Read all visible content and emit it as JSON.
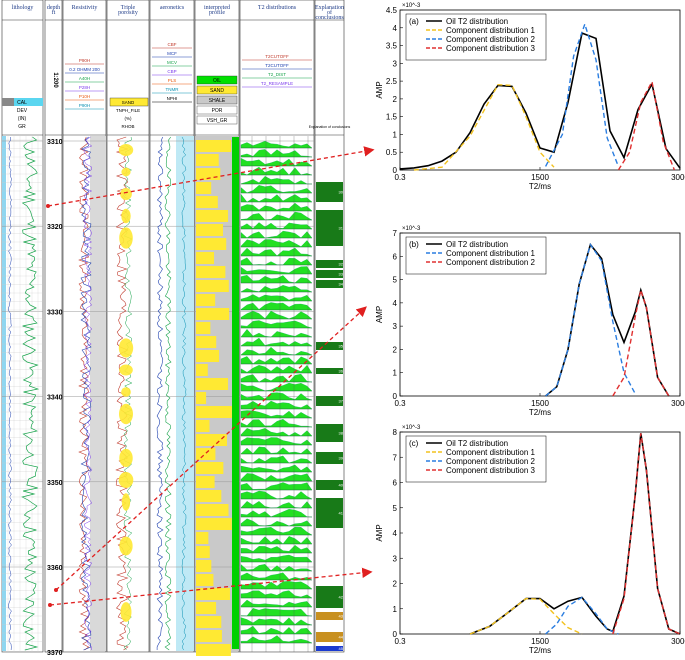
{
  "log_panel": {
    "columns": [
      "lithology",
      "depth\nft",
      "Resistivity",
      "Triple\nporosity",
      "aeronetics",
      "interpreted\nprofile",
      "T2 distributions",
      "Explanation\nof\nconclusions"
    ],
    "scale": "1:200",
    "depths": [
      "3310",
      "3320",
      "3330",
      "3340",
      "3350",
      "3360",
      "3370"
    ],
    "layer_numbers": [
      "30",
      "31",
      "32",
      "33",
      "34",
      "35",
      "36",
      "37",
      "38",
      "39",
      "40",
      "41",
      "42",
      "43",
      "44",
      "45"
    ],
    "curve_headers": {
      "lithology": [
        "CAL",
        "DEV",
        "(IN)",
        "GR"
      ],
      "resistivity": [
        "P90H",
        "0.2 OHMM 200",
        "A40H",
        "P28H",
        "P10H",
        "P90H"
      ],
      "porosity": [
        "SAND",
        "TNPH_FILE",
        "(%)",
        "RHOB"
      ],
      "nmr": [
        "CBF",
        "MCF",
        "MCV",
        "CBP",
        "PLS",
        "TNMR",
        "NPHI"
      ],
      "profile": [
        "OIL",
        "SAND",
        "SHALE",
        "POR",
        "VSH_GR"
      ],
      "t2": [
        "T2CUTOFF",
        "T2CUTOFF",
        "T2_DIST",
        "T2_RESAMPLE"
      ],
      "explanation": [
        "Explanation of conclusions"
      ]
    }
  },
  "chart_data": [
    {
      "type": "line",
      "panel_label": "(a)",
      "xlabel": "T2/ms",
      "ylabel": "AMP",
      "y_multiplier": "×10^-3",
      "xticks": [
        "0.3",
        "1500",
        "3000"
      ],
      "yticks": [
        "0",
        "0.5",
        "1",
        "1.5",
        "2",
        "2.5",
        "3",
        "3.5",
        "4",
        "4.5"
      ],
      "ylim": [
        0,
        4.5
      ],
      "legend_position": "top-left",
      "series": [
        {
          "name": "Oil T2 distribution",
          "color": "#000000",
          "dash": "solid",
          "x": [
            0,
            5,
            10,
            15,
            20,
            25,
            30,
            35,
            40,
            45,
            50,
            55,
            60,
            65,
            70,
            75,
            80,
            85,
            90,
            95,
            100
          ],
          "y": [
            0.03,
            0.06,
            0.12,
            0.25,
            0.5,
            1.05,
            1.85,
            2.38,
            2.35,
            1.6,
            0.62,
            0.5,
            1.9,
            3.85,
            3.7,
            1.1,
            0.35,
            1.7,
            2.42,
            0.6,
            0.05
          ]
        },
        {
          "name": "Component distribution 1",
          "color": "#f2c21f",
          "dash": "dash",
          "x": [
            5,
            15,
            25,
            35,
            40,
            45,
            50,
            55
          ],
          "y": [
            0,
            0.08,
            0.95,
            2.4,
            2.38,
            1.5,
            0.5,
            0.08
          ]
        },
        {
          "name": "Component distribution 2",
          "color": "#2a7de0",
          "dash": "dash",
          "x": [
            52,
            58,
            62,
            66,
            70,
            74,
            78
          ],
          "y": [
            0.1,
            1.0,
            3.2,
            4.1,
            3.1,
            0.9,
            0.1
          ]
        },
        {
          "name": "Component distribution 3",
          "color": "#e03030",
          "dash": "dash",
          "x": [
            78,
            82,
            86,
            90,
            94,
            98
          ],
          "y": [
            0,
            0.5,
            1.9,
            2.48,
            0.8,
            0
          ]
        }
      ]
    },
    {
      "type": "line",
      "panel_label": "(b)",
      "xlabel": "T2/ms",
      "ylabel": "AMP",
      "y_multiplier": "×10^-3",
      "xticks": [
        "0.3",
        "1500",
        "3000"
      ],
      "yticks": [
        "0",
        "1",
        "2",
        "3",
        "4",
        "5",
        "6",
        "7"
      ],
      "ylim": [
        0,
        7
      ],
      "legend_position": "top-left",
      "series": [
        {
          "name": "Oil T2 distribution",
          "color": "#000000",
          "dash": "solid",
          "x": [
            52,
            56,
            60,
            64,
            68,
            72,
            76,
            80,
            84,
            86,
            88,
            92,
            96
          ],
          "y": [
            0,
            0.4,
            2.0,
            4.8,
            6.5,
            5.9,
            3.5,
            2.3,
            3.6,
            4.55,
            3.8,
            0.8,
            0
          ]
        },
        {
          "name": "Component distribution 1",
          "color": "#2a7de0",
          "dash": "dash",
          "x": [
            52,
            56,
            60,
            64,
            68,
            72,
            76,
            80,
            84
          ],
          "y": [
            0,
            0.4,
            2.0,
            4.8,
            6.5,
            5.8,
            3.2,
            1.0,
            0.1
          ]
        },
        {
          "name": "Component distribution 2",
          "color": "#e03030",
          "dash": "dash",
          "x": [
            76,
            80,
            84,
            86,
            88,
            92,
            96
          ],
          "y": [
            0,
            0.8,
            3.4,
            4.55,
            3.8,
            0.8,
            0
          ]
        }
      ]
    },
    {
      "type": "line",
      "panel_label": "(c)",
      "xlabel": "T2/ms",
      "ylabel": "AMP",
      "y_multiplier": "×10^-3",
      "xticks": [
        "0.3",
        "1500",
        "3000"
      ],
      "yticks": [
        "0",
        "1",
        "2",
        "3",
        "4",
        "5",
        "6",
        "7",
        "8"
      ],
      "ylim": [
        0,
        8
      ],
      "legend_position": "top-left",
      "series": [
        {
          "name": "Oil T2 distribution",
          "color": "#000000",
          "dash": "solid",
          "x": [
            25,
            32,
            38,
            45,
            50,
            55,
            60,
            65,
            70,
            74,
            76,
            80,
            84,
            86,
            88,
            92,
            96,
            100
          ],
          "y": [
            0,
            0.3,
            0.8,
            1.4,
            1.4,
            1.0,
            1.3,
            1.45,
            0.7,
            0.2,
            0.1,
            1.5,
            5.5,
            7.95,
            6.5,
            1.8,
            0.2,
            0
          ]
        },
        {
          "name": "Component distribution 1",
          "color": "#f2c21f",
          "dash": "dash",
          "x": [
            25,
            32,
            38,
            45,
            50,
            55,
            60,
            65
          ],
          "y": [
            0,
            0.3,
            0.8,
            1.4,
            1.38,
            0.8,
            0.25,
            0
          ]
        },
        {
          "name": "Component distribution 2",
          "color": "#2a7de0",
          "dash": "dash",
          "x": [
            52,
            56,
            60,
            65,
            70,
            74,
            78
          ],
          "y": [
            0,
            0.4,
            1.1,
            1.45,
            0.8,
            0.2,
            0
          ]
        },
        {
          "name": "Component distribution 3",
          "color": "#e03030",
          "dash": "dash",
          "x": [
            76,
            80,
            84,
            86,
            88,
            92,
            96,
            100
          ],
          "y": [
            0,
            1.4,
            5.5,
            7.95,
            6.5,
            1.8,
            0.2,
            0
          ]
        }
      ]
    }
  ]
}
